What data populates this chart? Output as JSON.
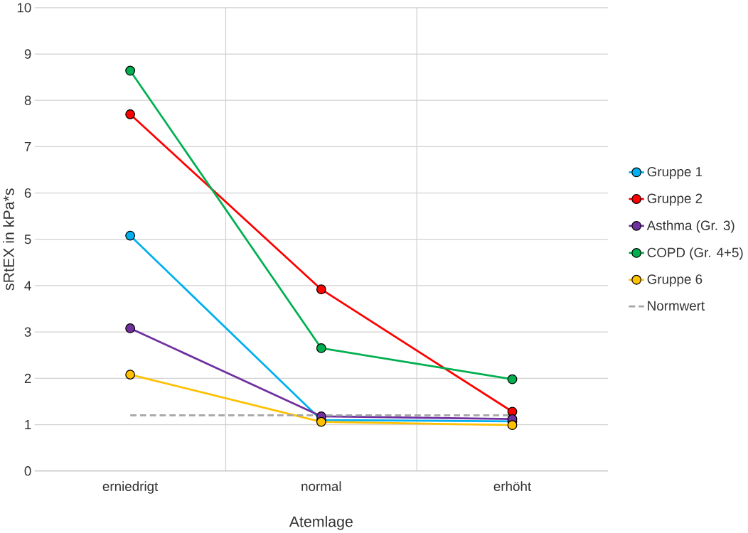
{
  "chart_data": {
    "type": "line",
    "xlabel": "Atemlage",
    "ylabel": "sRtEX in kPa*s",
    "categories": [
      "erniedrigt",
      "normal",
      "erhöht"
    ],
    "series": [
      {
        "name": "Gruppe 1",
        "color": "#00b0f0",
        "values": [
          5.08,
          1.1,
          1.07
        ]
      },
      {
        "name": "Gruppe 2",
        "color": "#ff0000",
        "values": [
          7.7,
          3.92,
          1.28
        ]
      },
      {
        "name": "Asthma (Gr. 3)",
        "color": "#7030a0",
        "values": [
          3.08,
          1.18,
          1.12
        ]
      },
      {
        "name": "COPD (Gr. 4+5)",
        "color": "#00b050",
        "values": [
          8.64,
          2.65,
          1.98
        ]
      },
      {
        "name": "Gruppe 6",
        "color": "#ffc000",
        "values": [
          2.08,
          1.06,
          0.99
        ]
      },
      {
        "name": "Normwert",
        "color": "#a5a5a5",
        "values": [
          1.2,
          1.2,
          1.2
        ],
        "marker": "none",
        "line_style": "dashed"
      }
    ],
    "marker": "circle",
    "line_style": "solid",
    "ylim": [
      0,
      10
    ],
    "yticks": [
      0,
      1,
      2,
      3,
      4,
      5,
      6,
      7,
      8,
      9,
      10
    ],
    "grid": true,
    "legend": "right"
  }
}
